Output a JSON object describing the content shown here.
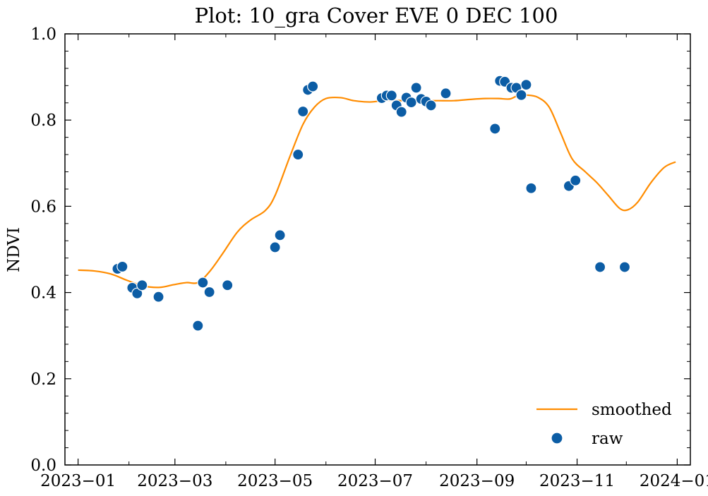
{
  "chart_data": {
    "type": "scatter",
    "title": "Plot: 10_gra Cover EVE 0 DEC 100",
    "xlabel": "",
    "ylabel": "NDVI",
    "xlim": [
      "2022-12-24",
      "2024-01-09"
    ],
    "ylim": [
      0,
      1.0
    ],
    "x_ticks": [
      "2023-01-01",
      "2023-03-01",
      "2023-05-01",
      "2023-07-01",
      "2023-09-01",
      "2023-11-01",
      "2024-01-01"
    ],
    "x_tick_labels": [
      "2023−01",
      "2023−03",
      "2023−05",
      "2023−07",
      "2023−09",
      "2023−11",
      "2024−01"
    ],
    "y_ticks": [
      0.0,
      0.2,
      0.4,
      0.6,
      0.8,
      1.0
    ],
    "y_tick_labels": [
      "0.0",
      "0.2",
      "0.4",
      "0.6",
      "0.8",
      "1.0"
    ],
    "legend": {
      "position": "lower-right"
    },
    "colors": {
      "smoothed": "#ff8c00",
      "raw": "#0c5da5"
    },
    "series": [
      {
        "name": "smoothed",
        "kind": "line",
        "x": [
          "2023-01-01",
          "2023-01-11",
          "2023-01-21",
          "2023-01-31",
          "2023-02-10",
          "2023-02-20",
          "2023-02-28",
          "2023-03-08",
          "2023-03-15",
          "2023-03-22",
          "2023-03-30",
          "2023-04-08",
          "2023-04-16",
          "2023-04-25",
          "2023-05-01",
          "2023-05-10",
          "2023-05-18",
          "2023-05-25",
          "2023-06-01",
          "2023-06-10",
          "2023-06-18",
          "2023-06-28",
          "2023-07-08",
          "2023-07-18",
          "2023-07-28",
          "2023-08-08",
          "2023-08-18",
          "2023-08-28",
          "2023-09-06",
          "2023-09-14",
          "2023-09-21",
          "2023-09-26",
          "2023-10-01",
          "2023-10-08",
          "2023-10-15",
          "2023-10-22",
          "2023-10-29",
          "2023-11-06",
          "2023-11-13",
          "2023-11-20",
          "2023-11-27",
          "2023-12-02",
          "2023-12-08",
          "2023-12-16",
          "2023-12-24",
          "2023-12-31"
        ],
        "y": [
          0.452,
          0.45,
          0.443,
          0.428,
          0.415,
          0.412,
          0.418,
          0.423,
          0.423,
          0.448,
          0.49,
          0.54,
          0.568,
          0.59,
          0.625,
          0.715,
          0.79,
          0.83,
          0.85,
          0.852,
          0.845,
          0.842,
          0.846,
          0.845,
          0.845,
          0.845,
          0.845,
          0.848,
          0.85,
          0.85,
          0.849,
          0.857,
          0.858,
          0.853,
          0.83,
          0.77,
          0.71,
          0.68,
          0.655,
          0.625,
          0.595,
          0.592,
          0.61,
          0.655,
          0.69,
          0.703
        ]
      },
      {
        "name": "raw",
        "kind": "scatter",
        "x": [
          "2023-01-25",
          "2023-01-28",
          "2023-02-03",
          "2023-02-06",
          "2023-02-09",
          "2023-02-19",
          "2023-03-15",
          "2023-03-18",
          "2023-03-22",
          "2023-04-02",
          "2023-05-01",
          "2023-05-04",
          "2023-05-15",
          "2023-05-18",
          "2023-05-21",
          "2023-05-24",
          "2023-07-05",
          "2023-07-08",
          "2023-07-11",
          "2023-07-14",
          "2023-07-17",
          "2023-07-20",
          "2023-07-23",
          "2023-07-26",
          "2023-07-29",
          "2023-08-01",
          "2023-08-04",
          "2023-08-13",
          "2023-09-12",
          "2023-09-15",
          "2023-09-18",
          "2023-09-22",
          "2023-09-25",
          "2023-09-28",
          "2023-10-01",
          "2023-10-04",
          "2023-10-27",
          "2023-10-31",
          "2023-11-15",
          "2023-11-30"
        ],
        "y": [
          0.455,
          0.46,
          0.411,
          0.398,
          0.417,
          0.39,
          0.323,
          0.423,
          0.401,
          0.417,
          0.505,
          0.533,
          0.72,
          0.82,
          0.87,
          0.878,
          0.851,
          0.857,
          0.857,
          0.834,
          0.819,
          0.852,
          0.841,
          0.875,
          0.849,
          0.843,
          0.834,
          0.862,
          0.78,
          0.891,
          0.889,
          0.875,
          0.875,
          0.858,
          0.882,
          0.642,
          0.647,
          0.66,
          0.459,
          0.459
        ]
      }
    ]
  }
}
